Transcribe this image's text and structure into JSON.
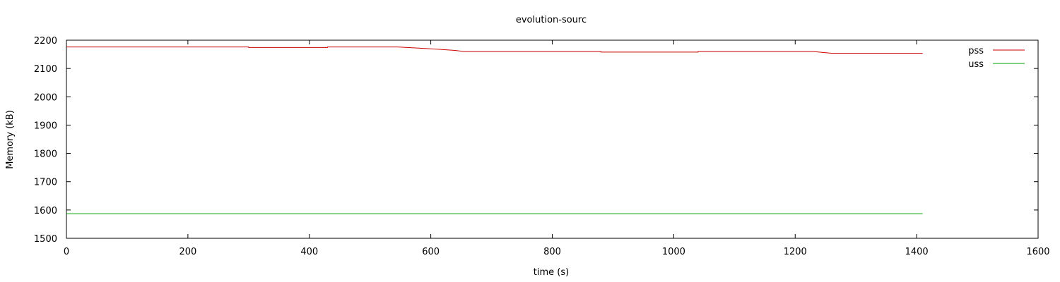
{
  "chart_data": {
    "type": "line",
    "title": "evolution-sourc",
    "xlabel": "time (s)",
    "ylabel": "Memory (kB)",
    "xlim": [
      0,
      1600
    ],
    "ylim": [
      1500,
      2200
    ],
    "x_ticks": [
      0,
      200,
      400,
      600,
      800,
      1000,
      1200,
      1400,
      1600
    ],
    "y_ticks": [
      1500,
      1600,
      1700,
      1800,
      1900,
      2000,
      2100,
      2200
    ],
    "grid": false,
    "legend_position": "top-right",
    "series": [
      {
        "name": "pss",
        "color": "#cc0000",
        "points": [
          [
            0,
            2176
          ],
          [
            300,
            2176
          ],
          [
            300,
            2174
          ],
          [
            430,
            2174
          ],
          [
            430,
            2176
          ],
          [
            545,
            2176
          ],
          [
            580,
            2172
          ],
          [
            610,
            2168
          ],
          [
            640,
            2164
          ],
          [
            655,
            2160
          ],
          [
            880,
            2160
          ],
          [
            880,
            2158
          ],
          [
            1040,
            2158
          ],
          [
            1040,
            2160
          ],
          [
            1230,
            2160
          ],
          [
            1260,
            2154
          ],
          [
            1410,
            2154
          ]
        ]
      },
      {
        "name": "uss",
        "color": "#00a000",
        "points": [
          [
            0,
            1587
          ],
          [
            1410,
            1587
          ]
        ]
      }
    ]
  }
}
